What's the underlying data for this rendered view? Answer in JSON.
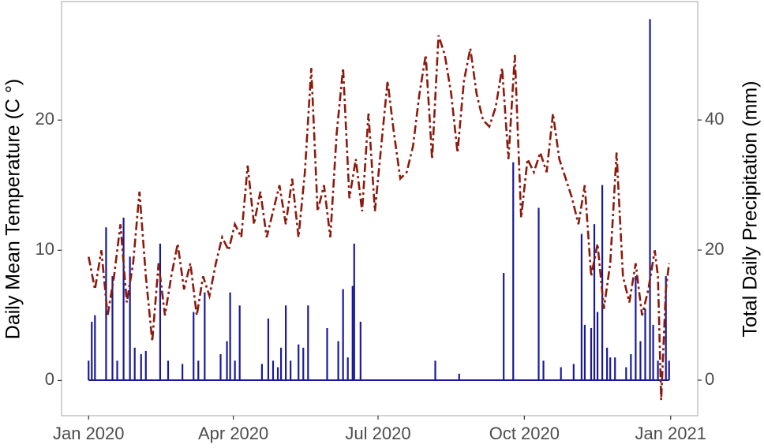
{
  "chart_data": {
    "type": "line",
    "y_label": "Daily Mean Temperature (C °)",
    "y2_label": "Total Daily Precipitation (mm)",
    "xlim": [
      "2019-12-15",
      "2021-01-18"
    ],
    "xticks": [
      {
        "value": "2020-01-01",
        "label": "Jan 2020"
      },
      {
        "value": "2020-04-01",
        "label": "Apr 2020"
      },
      {
        "value": "2020-07-01",
        "label": "Jul 2020"
      },
      {
        "value": "2020-10-01",
        "label": "Oct 2020"
      },
      {
        "value": "2021-01-01",
        "label": "Jan 2021"
      }
    ],
    "ylim": [
      -2.7,
      29.1
    ],
    "yticks": [
      0,
      10,
      20
    ],
    "y2lim": [
      -5.45,
      58.2
    ],
    "y2ticks": [
      0,
      20,
      40
    ],
    "grid": false,
    "series": [
      {
        "name": "Daily Mean Temperature",
        "type": "line",
        "color": "#8b1a0e",
        "axis": "y",
        "x": [
          "2020-01-01",
          "2020-01-05",
          "2020-01-09",
          "2020-01-13",
          "2020-01-17",
          "2020-01-21",
          "2020-01-25",
          "2020-01-29",
          "2020-02-02",
          "2020-02-06",
          "2020-02-10",
          "2020-02-14",
          "2020-02-18",
          "2020-02-22",
          "2020-02-26",
          "2020-03-01",
          "2020-03-05",
          "2020-03-09",
          "2020-03-13",
          "2020-03-17",
          "2020-03-21",
          "2020-03-25",
          "2020-03-29",
          "2020-04-02",
          "2020-04-06",
          "2020-04-10",
          "2020-04-14",
          "2020-04-18",
          "2020-04-22",
          "2020-04-26",
          "2020-04-30",
          "2020-05-04",
          "2020-05-08",
          "2020-05-12",
          "2020-05-16",
          "2020-05-20",
          "2020-05-24",
          "2020-05-28",
          "2020-06-01",
          "2020-06-05",
          "2020-06-09",
          "2020-06-13",
          "2020-06-17",
          "2020-06-21",
          "2020-06-25",
          "2020-06-29",
          "2020-07-03",
          "2020-07-07",
          "2020-07-11",
          "2020-07-15",
          "2020-07-19",
          "2020-07-23",
          "2020-07-27",
          "2020-07-31",
          "2020-08-04",
          "2020-08-08",
          "2020-08-12",
          "2020-08-16",
          "2020-08-20",
          "2020-08-24",
          "2020-08-28",
          "2020-09-01",
          "2020-09-05",
          "2020-09-09",
          "2020-09-13",
          "2020-09-17",
          "2020-09-21",
          "2020-09-25",
          "2020-09-29",
          "2020-10-03",
          "2020-10-07",
          "2020-10-11",
          "2020-10-15",
          "2020-10-19",
          "2020-10-23",
          "2020-10-27",
          "2020-10-31",
          "2020-11-04",
          "2020-11-08",
          "2020-11-12",
          "2020-11-16",
          "2020-11-20",
          "2020-11-24",
          "2020-11-28",
          "2020-12-02",
          "2020-12-06",
          "2020-12-10",
          "2020-12-14",
          "2020-12-18",
          "2020-12-22",
          "2020-12-24",
          "2020-12-26",
          "2020-12-29",
          "2020-12-31"
        ],
        "values": [
          9.5,
          7,
          10,
          5,
          8,
          12,
          6,
          9,
          14.5,
          8,
          3,
          9,
          5,
          8,
          10.5,
          7,
          9,
          5,
          8,
          6.5,
          9,
          11,
          10,
          12,
          11,
          16.5,
          12,
          14.5,
          11,
          13,
          15,
          12,
          15.5,
          11,
          16,
          24,
          13,
          15,
          11,
          19,
          24,
          14,
          17,
          13,
          20.5,
          13,
          18,
          23,
          19,
          15.5,
          16,
          18,
          22,
          25,
          17,
          26.5,
          25,
          22,
          17.5,
          23,
          25.5,
          22,
          20,
          19.5,
          21,
          24,
          17,
          25,
          12.5,
          17,
          16,
          17.5,
          16,
          20.5,
          17,
          15.5,
          14,
          12,
          15,
          8,
          10.5,
          5.5,
          9,
          17.5,
          8,
          6,
          9,
          5,
          7,
          10,
          8,
          -1.5,
          7,
          9
        ]
      },
      {
        "name": "Total Daily Precipitation",
        "type": "bar",
        "color": "#1a1a99",
        "axis": "y2",
        "x": [
          "2020-01-01",
          "2020-01-03",
          "2020-01-05",
          "2020-01-12",
          "2020-01-16",
          "2020-01-19",
          "2020-01-23",
          "2020-01-27",
          "2020-01-30",
          "2020-02-03",
          "2020-02-06",
          "2020-02-15",
          "2020-02-20",
          "2020-02-29",
          "2020-03-07",
          "2020-03-10",
          "2020-03-14",
          "2020-03-24",
          "2020-03-28",
          "2020-03-30",
          "2020-04-02",
          "2020-04-05",
          "2020-04-19",
          "2020-04-23",
          "2020-04-26",
          "2020-04-29",
          "2020-05-01",
          "2020-05-04",
          "2020-05-07",
          "2020-05-12",
          "2020-05-15",
          "2020-05-18",
          "2020-05-30",
          "2020-06-06",
          "2020-06-09",
          "2020-06-12",
          "2020-06-15",
          "2020-06-16",
          "2020-06-20",
          "2020-08-06",
          "2020-08-21",
          "2020-09-18",
          "2020-09-24",
          "2020-10-10",
          "2020-10-13",
          "2020-10-24",
          "2020-11-01",
          "2020-11-06",
          "2020-11-08",
          "2020-11-12",
          "2020-11-14",
          "2020-11-16",
          "2020-11-19",
          "2020-11-22",
          "2020-11-24",
          "2020-11-27",
          "2020-12-04",
          "2020-12-07",
          "2020-12-10",
          "2020-12-13",
          "2020-12-16",
          "2020-12-19",
          "2020-12-21",
          "2020-12-24",
          "2020-12-29",
          "2020-12-31"
        ],
        "values": [
          3,
          9,
          10,
          23.5,
          16,
          3,
          25,
          19,
          5,
          4,
          4.5,
          21,
          3,
          2.5,
          10.5,
          3,
          13.5,
          4,
          6,
          13.5,
          3,
          11.5,
          2.5,
          9.5,
          3,
          2,
          5,
          11.5,
          3,
          5.5,
          5,
          11.5,
          8,
          6,
          14,
          3.5,
          14.5,
          21,
          9,
          3,
          1,
          16.5,
          33.5,
          26.5,
          3,
          2,
          2.5,
          22.5,
          8.5,
          8,
          24,
          10.5,
          30,
          5,
          3.5,
          3.5,
          2,
          4,
          16,
          6,
          11,
          55.5,
          8.5,
          3,
          16,
          3
        ]
      }
    ]
  }
}
